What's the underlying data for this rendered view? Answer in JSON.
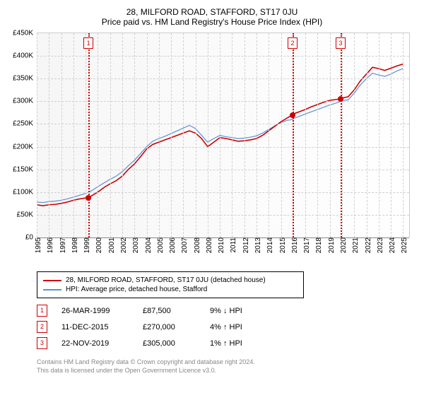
{
  "title": {
    "line1": "28, MILFORD ROAD, STAFFORD, ST17 0JU",
    "line2": "Price paid vs. HM Land Registry's House Price Index (HPI)"
  },
  "chart": {
    "type": "line",
    "background_gradient": [
      "#f6f6f6",
      "#ffffff"
    ],
    "grid_color": "#d0d0d0",
    "axis_color": "#888888",
    "x": {
      "min": 1995,
      "max": 2025.5,
      "ticks": [
        1995,
        1996,
        1997,
        1998,
        1999,
        2000,
        2001,
        2002,
        2003,
        2004,
        2005,
        2006,
        2007,
        2008,
        2009,
        2010,
        2011,
        2012,
        2013,
        2014,
        2015,
        2016,
        2017,
        2018,
        2019,
        2020,
        2021,
        2022,
        2023,
        2024,
        2025
      ]
    },
    "y": {
      "min": 0,
      "max": 450000,
      "ticks": [
        0,
        50000,
        100000,
        150000,
        200000,
        250000,
        300000,
        350000,
        400000,
        450000
      ],
      "tick_labels": [
        "£0",
        "£50K",
        "£100K",
        "£150K",
        "£200K",
        "£250K",
        "£300K",
        "£350K",
        "£400K",
        "£450K"
      ]
    },
    "series": [
      {
        "name": "28, MILFORD ROAD, STAFFORD, ST17 0JU (detached house)",
        "color": "#cc0000",
        "width": 1.6,
        "data": [
          [
            1995,
            72000
          ],
          [
            1995.5,
            70000
          ],
          [
            1996,
            72000
          ],
          [
            1996.5,
            73000
          ],
          [
            1997,
            75000
          ],
          [
            1997.5,
            78000
          ],
          [
            1998,
            82000
          ],
          [
            1998.5,
            85000
          ],
          [
            1999,
            87000
          ],
          [
            1999.23,
            87500
          ],
          [
            1999.5,
            92000
          ],
          [
            2000,
            100000
          ],
          [
            2000.5,
            110000
          ],
          [
            2001,
            118000
          ],
          [
            2001.5,
            125000
          ],
          [
            2002,
            135000
          ],
          [
            2002.5,
            150000
          ],
          [
            2003,
            162000
          ],
          [
            2003.5,
            178000
          ],
          [
            2004,
            195000
          ],
          [
            2004.5,
            205000
          ],
          [
            2005,
            210000
          ],
          [
            2005.5,
            215000
          ],
          [
            2006,
            220000
          ],
          [
            2006.5,
            225000
          ],
          [
            2007,
            230000
          ],
          [
            2007.5,
            235000
          ],
          [
            2008,
            230000
          ],
          [
            2008.5,
            218000
          ],
          [
            2009,
            200000
          ],
          [
            2009.5,
            210000
          ],
          [
            2010,
            220000
          ],
          [
            2010.5,
            218000
          ],
          [
            2011,
            215000
          ],
          [
            2011.5,
            212000
          ],
          [
            2012,
            213000
          ],
          [
            2012.5,
            215000
          ],
          [
            2013,
            218000
          ],
          [
            2013.5,
            225000
          ],
          [
            2014,
            235000
          ],
          [
            2014.5,
            245000
          ],
          [
            2015,
            255000
          ],
          [
            2015.5,
            263000
          ],
          [
            2015.95,
            270000
          ],
          [
            2016,
            272000
          ],
          [
            2016.5,
            277000
          ],
          [
            2017,
            282000
          ],
          [
            2017.5,
            288000
          ],
          [
            2018,
            293000
          ],
          [
            2018.5,
            298000
          ],
          [
            2019,
            302000
          ],
          [
            2019.5,
            304000
          ],
          [
            2019.89,
            305000
          ],
          [
            2020,
            307000
          ],
          [
            2020.5,
            310000
          ],
          [
            2021,
            325000
          ],
          [
            2021.5,
            345000
          ],
          [
            2022,
            360000
          ],
          [
            2022.5,
            375000
          ],
          [
            2023,
            372000
          ],
          [
            2023.5,
            368000
          ],
          [
            2024,
            373000
          ],
          [
            2024.5,
            378000
          ],
          [
            2025,
            382000
          ]
        ]
      },
      {
        "name": "HPI: Average price, detached house, Stafford",
        "color": "#5b8fd6",
        "width": 1.2,
        "data": [
          [
            1995,
            78000
          ],
          [
            1995.5,
            77000
          ],
          [
            1996,
            79000
          ],
          [
            1996.5,
            80000
          ],
          [
            1997,
            82000
          ],
          [
            1997.5,
            85000
          ],
          [
            1998,
            89000
          ],
          [
            1998.5,
            93000
          ],
          [
            1999,
            97000
          ],
          [
            1999.5,
            103000
          ],
          [
            2000,
            112000
          ],
          [
            2000.5,
            120000
          ],
          [
            2001,
            128000
          ],
          [
            2001.5,
            135000
          ],
          [
            2002,
            145000
          ],
          [
            2002.5,
            158000
          ],
          [
            2003,
            170000
          ],
          [
            2003.5,
            185000
          ],
          [
            2004,
            200000
          ],
          [
            2004.5,
            212000
          ],
          [
            2005,
            218000
          ],
          [
            2005.5,
            223000
          ],
          [
            2006,
            229000
          ],
          [
            2006.5,
            235000
          ],
          [
            2007,
            241000
          ],
          [
            2007.5,
            247000
          ],
          [
            2008,
            240000
          ],
          [
            2008.5,
            225000
          ],
          [
            2009,
            210000
          ],
          [
            2009.5,
            218000
          ],
          [
            2010,
            225000
          ],
          [
            2010.5,
            222000
          ],
          [
            2011,
            220000
          ],
          [
            2011.5,
            218000
          ],
          [
            2012,
            219000
          ],
          [
            2012.5,
            221000
          ],
          [
            2013,
            224000
          ],
          [
            2013.5,
            230000
          ],
          [
            2014,
            238000
          ],
          [
            2014.5,
            246000
          ],
          [
            2015,
            253000
          ],
          [
            2015.5,
            258000
          ],
          [
            2015.95,
            260000
          ],
          [
            2016,
            262000
          ],
          [
            2016.5,
            267000
          ],
          [
            2017,
            272000
          ],
          [
            2017.5,
            277000
          ],
          [
            2018,
            282000
          ],
          [
            2018.5,
            287000
          ],
          [
            2019,
            292000
          ],
          [
            2019.5,
            296000
          ],
          [
            2019.89,
            300000
          ],
          [
            2020,
            302000
          ],
          [
            2020.5,
            303000
          ],
          [
            2021,
            318000
          ],
          [
            2021.5,
            336000
          ],
          [
            2022,
            350000
          ],
          [
            2022.5,
            362000
          ],
          [
            2023,
            358000
          ],
          [
            2023.5,
            355000
          ],
          [
            2024,
            360000
          ],
          [
            2024.5,
            367000
          ],
          [
            2025,
            372000
          ]
        ]
      }
    ],
    "markers": [
      {
        "n": "1",
        "x": 1999.23,
        "y": 87500,
        "color": "#cc0000"
      },
      {
        "n": "2",
        "x": 2015.95,
        "y": 270000,
        "color": "#cc0000"
      },
      {
        "n": "3",
        "x": 2019.89,
        "y": 305000,
        "color": "#cc0000"
      }
    ]
  },
  "legend": [
    {
      "color": "#cc0000",
      "label": "28, MILFORD ROAD, STAFFORD, ST17 0JU (detached house)"
    },
    {
      "color": "#5b8fd6",
      "label": "HPI: Average price, detached house, Stafford"
    }
  ],
  "events": [
    {
      "n": "1",
      "color": "#cc0000",
      "date": "26-MAR-1999",
      "price": "£87,500",
      "hpi": "9% ↓ HPI"
    },
    {
      "n": "2",
      "color": "#cc0000",
      "date": "11-DEC-2015",
      "price": "£270,000",
      "hpi": "4% ↑ HPI"
    },
    {
      "n": "3",
      "color": "#cc0000",
      "date": "22-NOV-2019",
      "price": "£305,000",
      "hpi": "1% ↑ HPI"
    }
  ],
  "footer": {
    "line1": "Contains HM Land Registry data © Crown copyright and database right 2024.",
    "line2": "This data is licensed under the Open Government Licence v3.0."
  }
}
